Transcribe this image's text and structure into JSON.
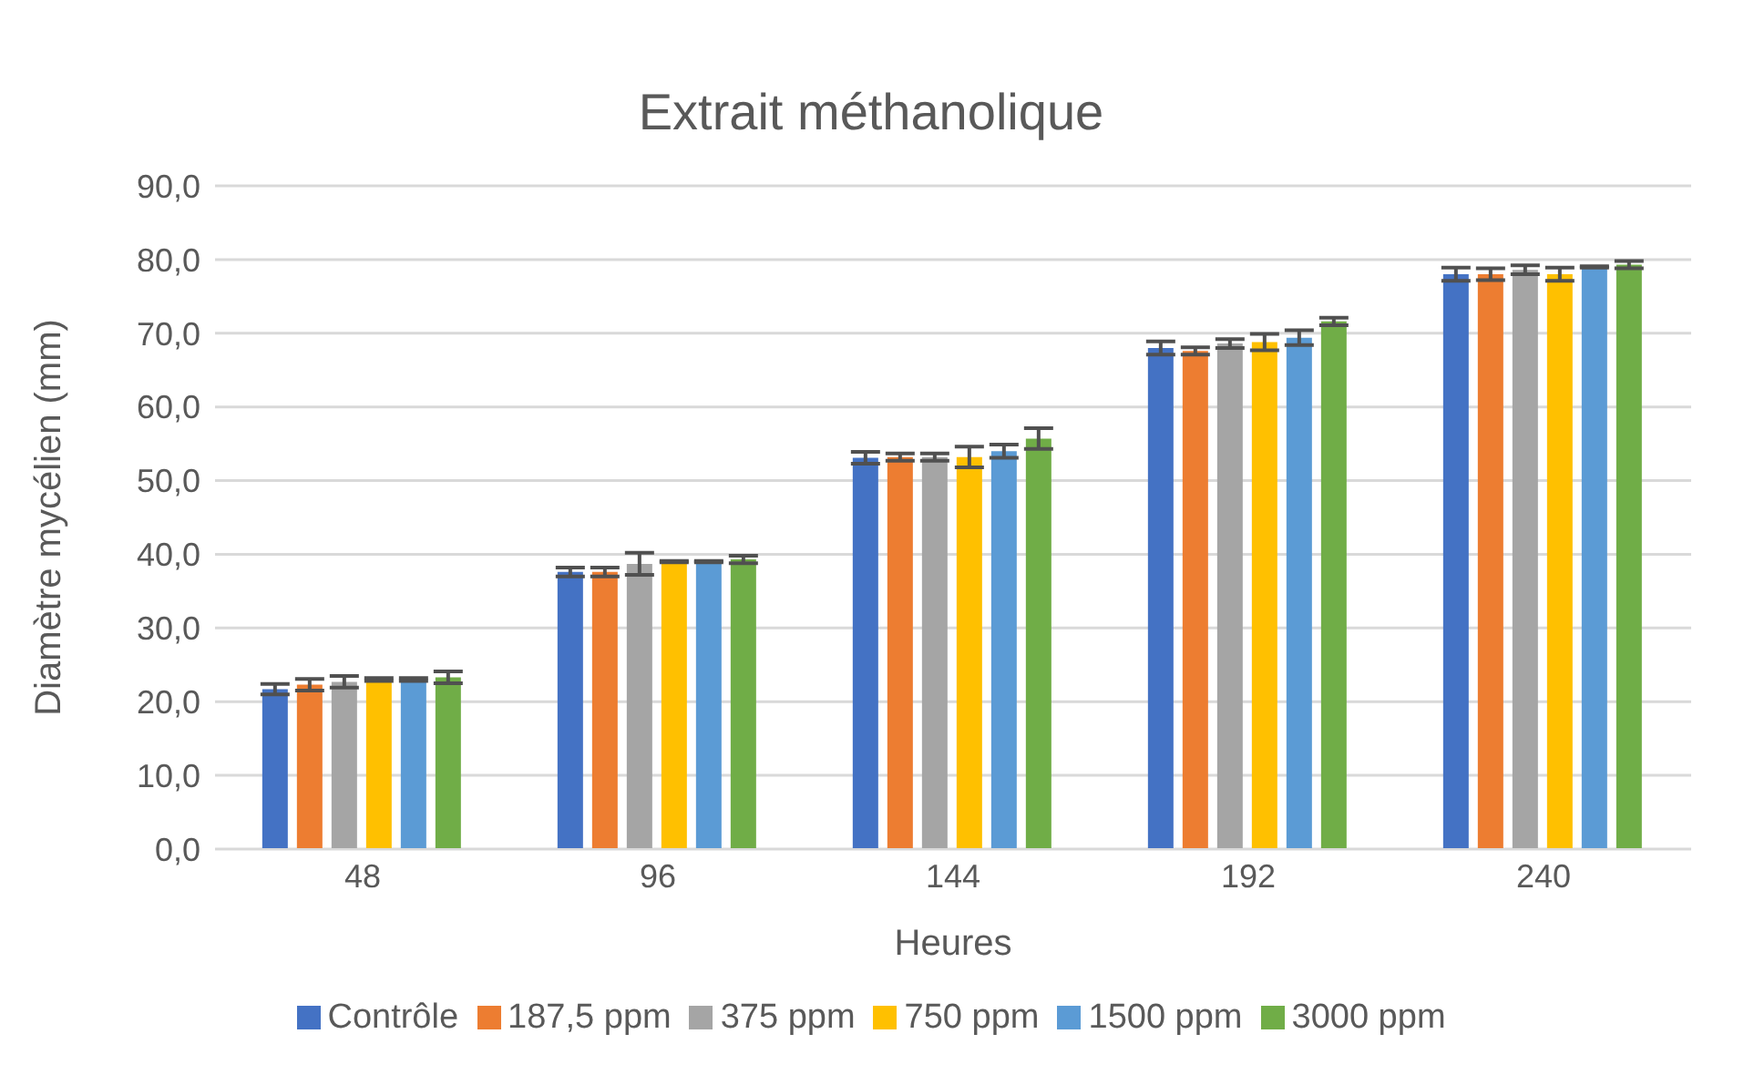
{
  "chart_data": {
    "type": "bar",
    "title": "Extrait méthanolique",
    "xlabel": "Heures",
    "ylabel": "Diamètre mycélien (mm)",
    "categories": [
      "48",
      "96",
      "144",
      "192",
      "240"
    ],
    "series": [
      {
        "name": "Contrôle",
        "color": "#4472c4",
        "values": [
          21.7,
          37.6,
          53.1,
          68.0,
          78.0
        ],
        "errors": [
          0.7,
          0.6,
          0.8,
          0.9,
          0.9
        ]
      },
      {
        "name": "187,5 ppm",
        "color": "#ed7d31",
        "values": [
          22.3,
          37.6,
          53.2,
          67.6,
          78.0
        ],
        "errors": [
          0.8,
          0.6,
          0.5,
          0.5,
          0.8
        ]
      },
      {
        "name": "375 ppm",
        "color": "#a5a5a5",
        "values": [
          22.7,
          38.7,
          53.2,
          68.6,
          78.6
        ],
        "errors": [
          0.8,
          1.5,
          0.5,
          0.6,
          0.6
        ]
      },
      {
        "name": "750 ppm",
        "color": "#ffc000",
        "values": [
          23.0,
          39.0,
          53.2,
          68.8,
          78.0
        ],
        "errors": [
          0.2,
          0.1,
          1.4,
          1.1,
          0.9
        ]
      },
      {
        "name": "1500 ppm",
        "color": "#5b9bd5",
        "values": [
          23.0,
          39.0,
          54.0,
          69.4,
          79.0
        ],
        "errors": [
          0.2,
          0.1,
          0.9,
          1.0,
          0.1
        ]
      },
      {
        "name": "3000 ppm",
        "color": "#70ad47",
        "values": [
          23.3,
          39.3,
          55.7,
          71.6,
          79.3
        ],
        "errors": [
          0.8,
          0.5,
          1.4,
          0.5,
          0.5
        ]
      }
    ],
    "ylim": [
      0,
      90
    ],
    "yticks": [
      {
        "value": 0,
        "label": "0,0"
      },
      {
        "value": 10,
        "label": "10,0"
      },
      {
        "value": 20,
        "label": "20,0"
      },
      {
        "value": 30,
        "label": "30,0"
      },
      {
        "value": 40,
        "label": "40,0"
      },
      {
        "value": 50,
        "label": "50,0"
      },
      {
        "value": 60,
        "label": "60,0"
      },
      {
        "value": 70,
        "label": "70,0"
      },
      {
        "value": 80,
        "label": "80,0"
      },
      {
        "value": 90,
        "label": "90,0"
      }
    ],
    "grid": "y",
    "legend": "bottom"
  }
}
